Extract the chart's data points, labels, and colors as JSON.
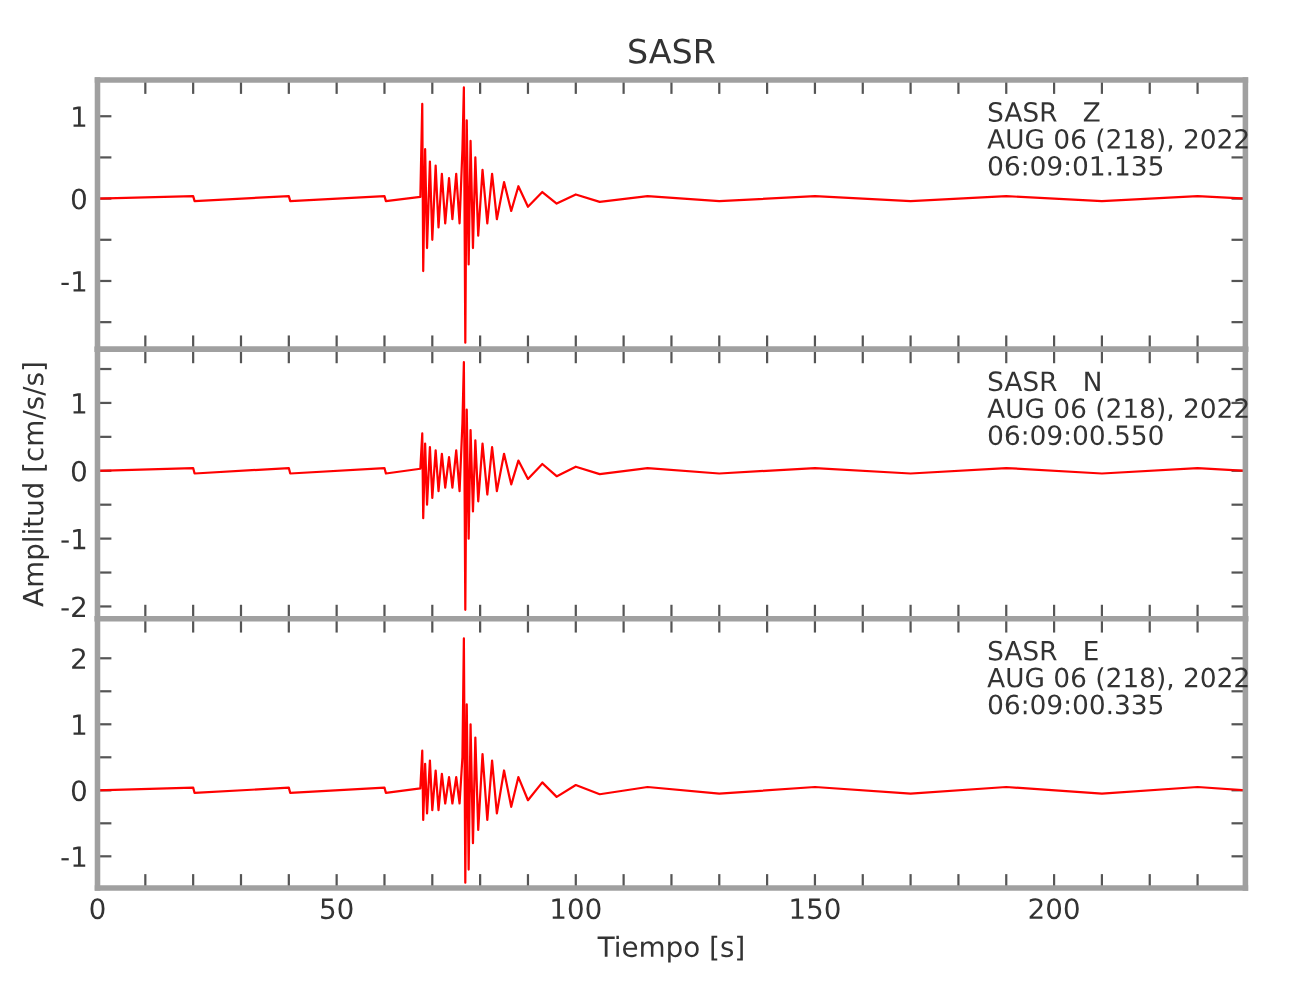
{
  "chart_data": [
    {
      "type": "line",
      "title": "SASR",
      "tick_labels": "y",
      "grid": false,
      "legend": false,
      "annotations": [
        "SASR   Z",
        "AUG 06 (218), 2022",
        "06:09:01.135"
      ],
      "xlim": [
        0,
        240
      ],
      "ylim": [
        -1.83,
        1.44
      ],
      "xticks": [
        0,
        {
          "value": 10,
          "label": null
        },
        {
          "value": 20,
          "label": null
        },
        {
          "value": 30,
          "label": null
        },
        {
          "value": 40,
          "label": null
        },
        50,
        {
          "value": 60,
          "label": null
        },
        {
          "value": 70,
          "label": null
        },
        {
          "value": 80,
          "label": null
        },
        {
          "value": 90,
          "label": null
        },
        100,
        {
          "value": 110,
          "label": null
        },
        {
          "value": 120,
          "label": null
        },
        {
          "value": 130,
          "label": null
        },
        {
          "value": 140,
          "label": null
        },
        150,
        {
          "value": 160,
          "label": null
        },
        {
          "value": 170,
          "label": null
        },
        {
          "value": 180,
          "label": null
        },
        {
          "value": 190,
          "label": null
        },
        200,
        {
          "value": 210,
          "label": null
        },
        {
          "value": 220,
          "label": null
        },
        {
          "value": 230,
          "label": null
        }
      ],
      "yticks": [
        {
          "value": -1.5,
          "label": null
        },
        -1,
        {
          "value": -0.5,
          "label": null
        },
        0,
        {
          "value": 0.5,
          "label": null
        },
        1
      ],
      "series": [
        {
          "color": "#ff0000",
          "x": [
            0,
            20,
            20.3,
            40,
            40.3,
            60,
            60.3,
            67.5,
            67.9,
            68.1,
            68.5,
            68.9,
            69.5,
            70,
            70.7,
            71.3,
            72,
            72.7,
            73.5,
            74.2,
            75,
            75.7,
            76.3,
            76.6,
            76.9,
            77.2,
            77.6,
            78,
            78.5,
            79,
            79.6,
            80.5,
            81.5,
            82.5,
            83.5,
            85,
            86.5,
            88,
            90,
            93,
            96,
            100,
            105,
            115,
            130,
            150,
            170,
            190,
            210,
            230,
            240
          ],
          "values": [
            0,
            0.03,
            -0.03,
            0.03,
            -0.03,
            0.03,
            -0.03,
            0.02,
            1.15,
            -0.88,
            0.6,
            -0.6,
            0.45,
            -0.5,
            0.4,
            -0.35,
            0.3,
            -0.3,
            0.25,
            -0.25,
            0.3,
            -0.3,
            0.6,
            1.35,
            -1.75,
            0.95,
            -0.8,
            0.7,
            -0.6,
            0.5,
            -0.45,
            0.35,
            -0.3,
            0.3,
            -0.25,
            0.2,
            -0.15,
            0.15,
            -0.1,
            0.08,
            -0.06,
            0.05,
            -0.04,
            0.03,
            -0.03,
            0.03,
            -0.03,
            0.03,
            -0.03,
            0.03,
            0
          ]
        }
      ]
    },
    {
      "type": "line",
      "ylabel": "Amplitud [cm/s/s]",
      "tick_labels": "y",
      "grid": false,
      "legend": false,
      "annotations": [
        "SASR   N",
        "AUG 06 (218), 2022",
        "06:09:00.550"
      ],
      "xlim": [
        0,
        240
      ],
      "ylim": [
        -2.18,
        1.79
      ],
      "xticks": [
        0,
        {
          "value": 10,
          "label": null
        },
        {
          "value": 20,
          "label": null
        },
        {
          "value": 30,
          "label": null
        },
        {
          "value": 40,
          "label": null
        },
        50,
        {
          "value": 60,
          "label": null
        },
        {
          "value": 70,
          "label": null
        },
        {
          "value": 80,
          "label": null
        },
        {
          "value": 90,
          "label": null
        },
        100,
        {
          "value": 110,
          "label": null
        },
        {
          "value": 120,
          "label": null
        },
        {
          "value": 130,
          "label": null
        },
        {
          "value": 140,
          "label": null
        },
        150,
        {
          "value": 160,
          "label": null
        },
        {
          "value": 170,
          "label": null
        },
        {
          "value": 180,
          "label": null
        },
        {
          "value": 190,
          "label": null
        },
        200,
        {
          "value": 210,
          "label": null
        },
        {
          "value": 220,
          "label": null
        },
        {
          "value": 230,
          "label": null
        }
      ],
      "yticks": [
        -2,
        {
          "value": -1.5,
          "label": null
        },
        -1,
        {
          "value": -0.5,
          "label": null
        },
        0,
        {
          "value": 0.5,
          "label": null
        },
        1,
        {
          "value": 1.5,
          "label": null
        }
      ],
      "series": [
        {
          "color": "#ff0000",
          "x": [
            0,
            20,
            20.3,
            40,
            40.3,
            60,
            60.3,
            67.5,
            67.9,
            68.1,
            68.5,
            68.9,
            69.5,
            70,
            70.7,
            71.3,
            72,
            72.7,
            73.5,
            74.2,
            75,
            75.7,
            76.3,
            76.6,
            76.9,
            77.2,
            77.6,
            78,
            78.5,
            79,
            79.6,
            80.5,
            81.5,
            82.5,
            83.5,
            85,
            86.5,
            88,
            90,
            93,
            96,
            100,
            105,
            115,
            130,
            150,
            170,
            190,
            210,
            230,
            240
          ],
          "values": [
            0,
            0.04,
            -0.04,
            0.04,
            -0.04,
            0.04,
            -0.04,
            0.03,
            0.55,
            -0.7,
            0.4,
            -0.5,
            0.35,
            -0.4,
            0.3,
            -0.3,
            0.25,
            -0.25,
            0.2,
            -0.25,
            0.3,
            -0.3,
            0.7,
            1.6,
            -2.05,
            0.9,
            -1.0,
            0.6,
            -0.6,
            0.45,
            -0.45,
            0.4,
            -0.35,
            0.35,
            -0.3,
            0.25,
            -0.2,
            0.15,
            -0.12,
            0.1,
            -0.08,
            0.06,
            -0.05,
            0.04,
            -0.04,
            0.04,
            -0.04,
            0.04,
            -0.04,
            0.04,
            0
          ]
        }
      ]
    },
    {
      "type": "line",
      "xlabel": "Tiempo [s]",
      "grid": false,
      "legend": false,
      "annotations": [
        "SASR   E",
        "AUG 06 (218), 2022",
        "06:09:00.335"
      ],
      "xlim": [
        0,
        240
      ],
      "ylim": [
        -1.48,
        2.6
      ],
      "xticks": [
        0,
        {
          "value": 10,
          "label": null
        },
        {
          "value": 20,
          "label": null
        },
        {
          "value": 30,
          "label": null
        },
        {
          "value": 40,
          "label": null
        },
        50,
        {
          "value": 60,
          "label": null
        },
        {
          "value": 70,
          "label": null
        },
        {
          "value": 80,
          "label": null
        },
        {
          "value": 90,
          "label": null
        },
        100,
        {
          "value": 110,
          "label": null
        },
        {
          "value": 120,
          "label": null
        },
        {
          "value": 130,
          "label": null
        },
        {
          "value": 140,
          "label": null
        },
        150,
        {
          "value": 160,
          "label": null
        },
        {
          "value": 170,
          "label": null
        },
        {
          "value": 180,
          "label": null
        },
        {
          "value": 190,
          "label": null
        },
        200,
        {
          "value": 210,
          "label": null
        },
        {
          "value": 220,
          "label": null
        },
        {
          "value": 230,
          "label": null
        }
      ],
      "yticks": [
        -1,
        {
          "value": -0.5,
          "label": null
        },
        0,
        {
          "value": 0.5,
          "label": null
        },
        1,
        {
          "value": 1.5,
          "label": null
        },
        2
      ],
      "series": [
        {
          "color": "#ff0000",
          "x": [
            0,
            20,
            20.3,
            40,
            40.3,
            60,
            60.3,
            67.5,
            67.9,
            68.1,
            68.5,
            68.9,
            69.5,
            70,
            70.7,
            71.3,
            72,
            72.7,
            73.5,
            74.2,
            75,
            75.7,
            76.3,
            76.6,
            76.9,
            77.2,
            77.6,
            78,
            78.5,
            79,
            79.6,
            80.5,
            81.5,
            82.5,
            83.5,
            85,
            86.5,
            88,
            90,
            93,
            96,
            100,
            105,
            115,
            130,
            150,
            170,
            190,
            210,
            230,
            240
          ],
          "values": [
            0,
            0.04,
            -0.04,
            0.04,
            -0.04,
            0.04,
            -0.04,
            0.03,
            0.6,
            -0.45,
            0.4,
            -0.35,
            0.45,
            -0.3,
            0.3,
            -0.3,
            0.25,
            -0.2,
            0.2,
            -0.2,
            0.2,
            -0.2,
            0.5,
            2.3,
            -1.4,
            1.3,
            -1.2,
            1.0,
            -0.8,
            0.8,
            -0.6,
            0.55,
            -0.45,
            0.45,
            -0.35,
            0.3,
            -0.25,
            0.2,
            -0.15,
            0.12,
            -0.1,
            0.08,
            -0.06,
            0.05,
            -0.05,
            0.05,
            -0.05,
            0.05,
            -0.05,
            0.05,
            0
          ]
        }
      ]
    }
  ]
}
